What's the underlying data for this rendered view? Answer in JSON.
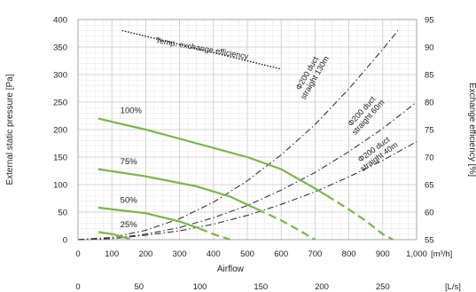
{
  "chart_data": {
    "type": "line",
    "xlabel": "Airflow",
    "ylabel_left": "External static pressure [Pa]",
    "ylabel_right": "Exchange efficiency [%]",
    "x_unit": "[m³/h]",
    "x2_unit": "[L/s]",
    "xlim": [
      0,
      1000
    ],
    "ylim_left": [
      0,
      400
    ],
    "ylim_right": [
      55,
      95
    ],
    "x_ticks": [
      "0",
      "100",
      "200",
      "300",
      "400",
      "500",
      "600",
      "700",
      "800",
      "900",
      "1,000"
    ],
    "x2_ticks": [
      {
        "value": 0,
        "label": "0"
      },
      {
        "value": 50,
        "label": "50"
      },
      {
        "value": 100,
        "label": "100"
      },
      {
        "value": 150,
        "label": "150"
      },
      {
        "value": 200,
        "label": "200"
      },
      {
        "value": 250,
        "label": "250"
      }
    ],
    "y_left_ticks": [
      "0",
      "50",
      "100",
      "150",
      "200",
      "250",
      "300",
      "350",
      "400"
    ],
    "y_right_ticks": [
      "55",
      "60",
      "65",
      "70",
      "75",
      "80",
      "85",
      "90",
      "95"
    ],
    "grid": true,
    "colors": {
      "fan": "#7ab648",
      "duct": "#333333",
      "efficiency": "#111111",
      "grid": "#cccccc"
    },
    "fan_curves": [
      {
        "name": "100%",
        "solid": [
          [
            60,
            220
          ],
          [
            200,
            200
          ],
          [
            350,
            175
          ],
          [
            500,
            150
          ],
          [
            600,
            128
          ],
          [
            700,
            93
          ],
          [
            735,
            80
          ]
        ],
        "dashed": [
          [
            735,
            80
          ],
          [
            800,
            55
          ],
          [
            850,
            34
          ],
          [
            900,
            10
          ],
          [
            930,
            0
          ]
        ]
      },
      {
        "name": "75%",
        "solid": [
          [
            60,
            128
          ],
          [
            200,
            115
          ],
          [
            350,
            97
          ],
          [
            450,
            78
          ],
          [
            530,
            55
          ]
        ],
        "dashed": [
          [
            530,
            55
          ],
          [
            600,
            35
          ],
          [
            650,
            18
          ],
          [
            700,
            0
          ]
        ]
      },
      {
        "name": "50%",
        "solid": [
          [
            60,
            58
          ],
          [
            200,
            48
          ],
          [
            300,
            33
          ],
          [
            360,
            20
          ]
        ],
        "dashed": [
          [
            360,
            20
          ],
          [
            400,
            10
          ],
          [
            450,
            0
          ]
        ]
      },
      {
        "name": "25%",
        "solid": [
          [
            60,
            14
          ],
          [
            110,
            9
          ],
          [
            130,
            5
          ]
        ],
        "dashed": [
          [
            130,
            5
          ],
          [
            150,
            2
          ],
          [
            160,
            0
          ]
        ]
      }
    ],
    "duct_curves": [
      {
        "name": "Φ200 duct straight 130m",
        "points": [
          [
            0,
            0
          ],
          [
            100,
            4
          ],
          [
            200,
            17
          ],
          [
            300,
            38
          ],
          [
            400,
            68
          ],
          [
            500,
            107
          ],
          [
            600,
            154
          ],
          [
            700,
            209
          ],
          [
            800,
            274
          ],
          [
            900,
            346
          ],
          [
            945,
            380
          ]
        ]
      },
      {
        "name": "Φ200 duct straight 60m",
        "points": [
          [
            0,
            0
          ],
          [
            100,
            2
          ],
          [
            200,
            10
          ],
          [
            300,
            22
          ],
          [
            400,
            40
          ],
          [
            500,
            62
          ],
          [
            600,
            90
          ],
          [
            700,
            122
          ],
          [
            800,
            160
          ],
          [
            900,
            202
          ],
          [
            1000,
            250
          ]
        ]
      },
      {
        "name": "Φ200 duct straight 40m",
        "points": [
          [
            0,
            0
          ],
          [
            100,
            2
          ],
          [
            200,
            8
          ],
          [
            300,
            16
          ],
          [
            400,
            28
          ],
          [
            500,
            44
          ],
          [
            600,
            64
          ],
          [
            700,
            87
          ],
          [
            800,
            114
          ],
          [
            900,
            144
          ],
          [
            1000,
            178
          ]
        ]
      }
    ],
    "efficiency_curve": {
      "name": "Temp. exchange efficiency",
      "points": [
        [
          130,
          93
        ],
        [
          600,
          86
        ]
      ]
    },
    "annotations": {
      "efficiency_label": "Temp. exchange efficiency",
      "duct130": [
        "Φ200 duct",
        "straight 130m"
      ],
      "duct60": [
        "Φ200 duct",
        "straight 60m"
      ],
      "duct40": [
        "Φ200 duct",
        "straight 40m"
      ]
    }
  }
}
